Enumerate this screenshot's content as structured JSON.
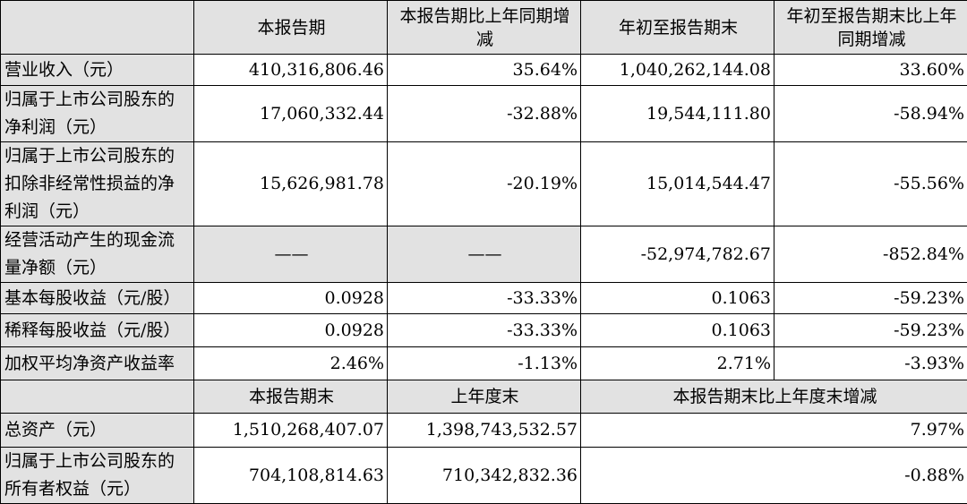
{
  "headers": {
    "top": [
      "本报告期",
      "本报告期比上年同期增减",
      "年初至报告期末",
      "年初至报告期末比上年同期增减"
    ],
    "bottom": [
      "本报告期末",
      "上年度末",
      "本报告期末比上年度末增减"
    ]
  },
  "rows_top": [
    {
      "label": "营业收入（元）",
      "c1": "410,316,806.46",
      "c2": "35.64%",
      "c3": "1,040,262,144.08",
      "c4": "33.60%"
    },
    {
      "label": "归属于上市公司股东的净利润（元）",
      "c1": "17,060,332.44",
      "c2": "-32.88%",
      "c3": "19,544,111.80",
      "c4": "-58.94%"
    },
    {
      "label": "归属于上市公司股东的扣除非经常性损益的净利润（元）",
      "c1": "15,626,981.78",
      "c2": "-20.19%",
      "c3": "15,014,544.47",
      "c4": "-55.56%"
    },
    {
      "label": "经营活动产生的现金流量净额（元）",
      "c1": "——",
      "c2": "——",
      "c3": "-52,974,782.67",
      "c4": "-852.84%"
    },
    {
      "label": "基本每股收益（元/股）",
      "c1": "0.0928",
      "c2": "-33.33%",
      "c3": "0.1063",
      "c4": "-59.23%"
    },
    {
      "label": "稀释每股收益（元/股）",
      "c1": "0.0928",
      "c2": "-33.33%",
      "c3": "0.1063",
      "c4": "-59.23%"
    },
    {
      "label": "加权平均净资产收益率",
      "c1": "2.46%",
      "c2": "-1.13%",
      "c3": "2.71%",
      "c4": "-3.93%"
    }
  ],
  "rows_bottom": [
    {
      "label": "总资产（元）",
      "c1": "1,510,268,407.07",
      "c2": "1,398,743,532.57",
      "c3": "7.97%"
    },
    {
      "label": "归属于上市公司股东的所有者权益（元）",
      "c1": "704,108,814.63",
      "c2": "710,342,832.36",
      "c3": "-0.88%"
    }
  ]
}
